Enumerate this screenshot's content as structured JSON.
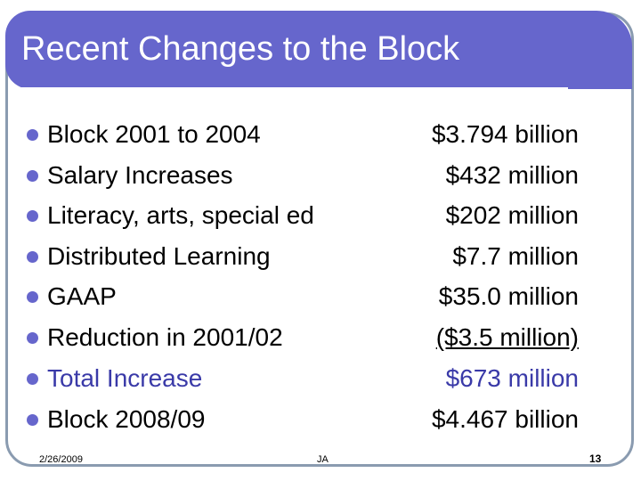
{
  "slide": {
    "title": "Recent Changes to the Block",
    "rows": [
      {
        "label": "Block 2001 to 2004",
        "value": "$3.794 billion"
      },
      {
        "label": "Salary Increases",
        "value": "$432 million"
      },
      {
        "label": "Literacy, arts, special ed",
        "value": "$202 million"
      },
      {
        "label": "Distributed Learning",
        "value": "$7.7 million"
      },
      {
        "label": "GAAP",
        "value": "$35.0 million"
      },
      {
        "label": "Reduction in 2001/02",
        "value": "($3.5 million)"
      },
      {
        "label": "Total Increase",
        "value": "$673 million"
      },
      {
        "label": "Block 2008/09",
        "value": "$4.467 billion"
      }
    ],
    "footer": {
      "date": "2/26/2009",
      "author": "JA",
      "page": "13"
    },
    "colors": {
      "accent": "#6666cc",
      "frame": "#8a9bb0",
      "highlight_text": "#3a3aa8"
    }
  }
}
